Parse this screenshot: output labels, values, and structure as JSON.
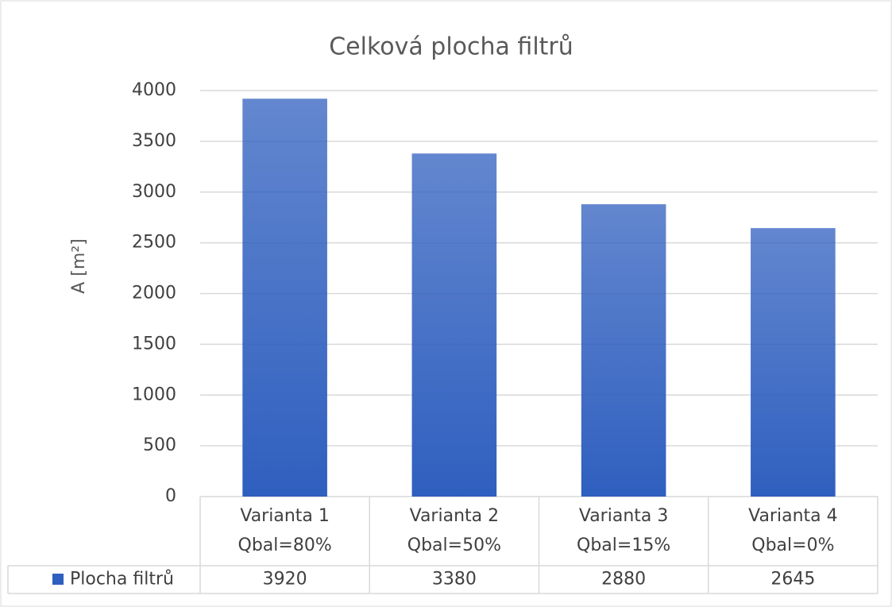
{
  "chart_data": {
    "type": "bar",
    "title": "Celková plocha filtrů",
    "y_label": "A [m²]",
    "categories": [
      [
        "Varianta 1",
        "Qbal=80%"
      ],
      [
        "Varianta 2",
        "Qbal=50%"
      ],
      [
        "Varianta 3",
        "Qbal=15%"
      ],
      [
        "Varianta 4",
        "Qbal=0%"
      ]
    ],
    "series": [
      {
        "name": "Plocha filtrů",
        "color": "#2f5fbf",
        "values": [
          3920,
          3380,
          2880,
          2645
        ]
      }
    ],
    "ylim": [
      0,
      4000
    ],
    "yticks": [
      0,
      500,
      1000,
      1500,
      2000,
      2500,
      3000,
      3500,
      4000
    ],
    "grid": true,
    "data_table": true
  }
}
